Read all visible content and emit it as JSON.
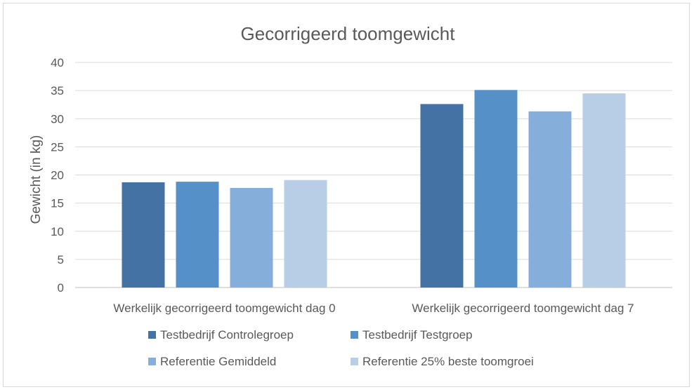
{
  "chart_data": {
    "type": "bar",
    "title": "Gecorrigeerd toomgewicht",
    "xlabel": "",
    "ylabel": "Gewicht (in kg)",
    "ylim": [
      0,
      40
    ],
    "yticks": [
      "0",
      "5",
      "10",
      "15",
      "20",
      "25",
      "30",
      "35",
      "40"
    ],
    "grid": true,
    "legend_position": "bottom",
    "categories": [
      "Werkelijk gecorrigeerd toomgewicht dag 0",
      "Werkelijk gecorrigeerd toomgewicht dag 7"
    ],
    "series": [
      {
        "name": "Testbedrijf Controlegroep",
        "values": [
          18.7,
          32.6
        ],
        "color": "#4472a4"
      },
      {
        "name": "Testbedrijf Testgroep",
        "values": [
          18.8,
          35.1
        ],
        "color": "#5590c8"
      },
      {
        "name": "Referentie Gemiddeld",
        "values": [
          17.7,
          31.3
        ],
        "color": "#85aedb"
      },
      {
        "name": "Referentie 25% beste toomgroei",
        "values": [
          19.1,
          34.5
        ],
        "color": "#b8cde6"
      }
    ]
  }
}
